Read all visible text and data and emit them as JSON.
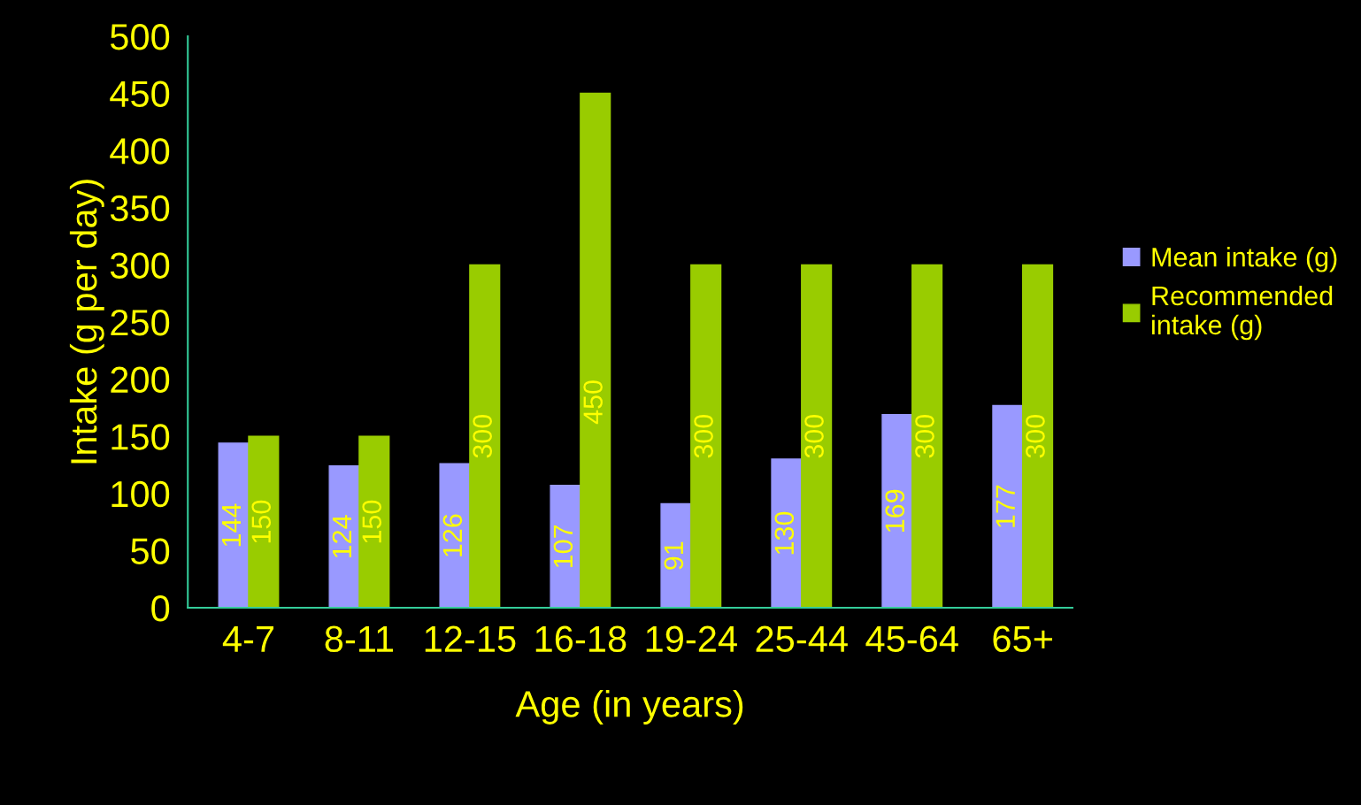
{
  "chart_data": {
    "type": "bar",
    "xlabel": "Age (in years)",
    "ylabel": "Intake (g per day)",
    "categories": [
      "4-7",
      "8-11",
      "12-15",
      "16-18",
      "19-24",
      "25-44",
      "45-64",
      "65+"
    ],
    "series": [
      {
        "name": "Mean intake (g)",
        "color": "#9999ff",
        "values": [
          144,
          124,
          126,
          107,
          91,
          130,
          169,
          177
        ]
      },
      {
        "name": "Recommended\nintake (g)",
        "color": "#99cc00",
        "values": [
          150,
          150,
          300,
          450,
          300,
          300,
          300,
          300
        ]
      }
    ],
    "ylim": [
      0,
      500
    ],
    "yticks": [
      0,
      50,
      100,
      150,
      200,
      250,
      300,
      350,
      400,
      450,
      500
    ],
    "data_labels": true,
    "grid": false,
    "legend": "right"
  }
}
